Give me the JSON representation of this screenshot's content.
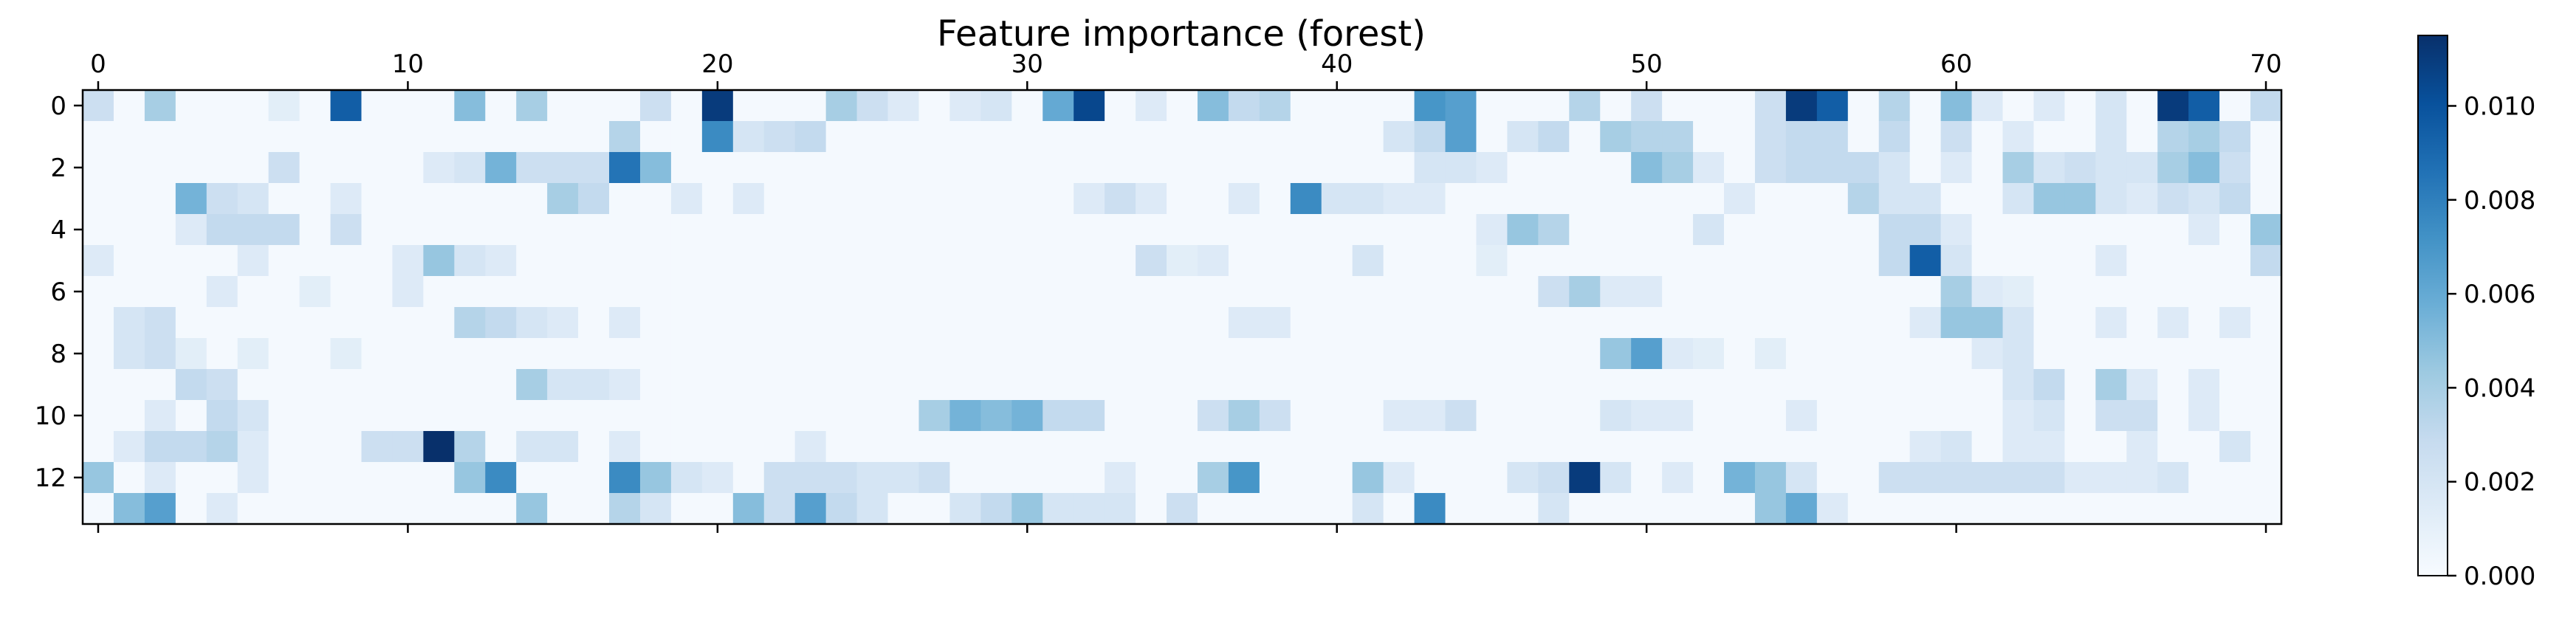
{
  "chart_data": {
    "type": "heatmap",
    "title": "Feature importance (forest)",
    "colormap": "Blues",
    "n_rows": 14,
    "n_cols": 71,
    "x_ticks": [
      0,
      10,
      20,
      30,
      40,
      50,
      60,
      70
    ],
    "x_tick_labels": [
      "0",
      "10",
      "20",
      "30",
      "40",
      "50",
      "60",
      "70"
    ],
    "y_ticks": [
      0,
      2,
      4,
      6,
      8,
      10,
      12
    ],
    "y_tick_labels": [
      "0",
      "2",
      "4",
      "6",
      "8",
      "10",
      "12"
    ],
    "colorbar": {
      "min": 0.0,
      "max": 0.0115,
      "ticks": [
        0.0,
        0.002,
        0.004,
        0.006,
        0.008,
        0.01
      ],
      "tick_labels": [
        "0.000",
        "0.002",
        "0.004",
        "0.006",
        "0.008",
        "0.010"
      ]
    },
    "base_value": 0.0002,
    "cells": [
      [
        0,
        0,
        0.0025
      ],
      [
        0,
        2,
        0.004
      ],
      [
        0,
        6,
        0.0012
      ],
      [
        0,
        8,
        0.0095
      ],
      [
        0,
        12,
        0.005
      ],
      [
        0,
        14,
        0.004
      ],
      [
        0,
        18,
        0.0025
      ],
      [
        0,
        20,
        0.011
      ],
      [
        0,
        24,
        0.004
      ],
      [
        0,
        25,
        0.0025
      ],
      [
        0,
        26,
        0.0015
      ],
      [
        0,
        28,
        0.0015
      ],
      [
        0,
        29,
        0.002
      ],
      [
        0,
        31,
        0.006
      ],
      [
        0,
        32,
        0.0105
      ],
      [
        0,
        34,
        0.0015
      ],
      [
        0,
        36,
        0.005
      ],
      [
        0,
        37,
        0.003
      ],
      [
        0,
        38,
        0.0035
      ],
      [
        0,
        43,
        0.007
      ],
      [
        0,
        44,
        0.0065
      ],
      [
        0,
        48,
        0.0035
      ],
      [
        0,
        50,
        0.0025
      ],
      [
        0,
        54,
        0.0025
      ],
      [
        0,
        55,
        0.011
      ],
      [
        0,
        56,
        0.0095
      ],
      [
        0,
        58,
        0.0035
      ],
      [
        0,
        60,
        0.005
      ],
      [
        0,
        61,
        0.0015
      ],
      [
        0,
        63,
        0.0015
      ],
      [
        0,
        65,
        0.002
      ],
      [
        0,
        67,
        0.011
      ],
      [
        0,
        68,
        0.0095
      ],
      [
        0,
        70,
        0.003
      ],
      [
        1,
        17,
        0.0035
      ],
      [
        1,
        20,
        0.0075
      ],
      [
        1,
        21,
        0.002
      ],
      [
        1,
        22,
        0.0025
      ],
      [
        1,
        23,
        0.003
      ],
      [
        1,
        42,
        0.002
      ],
      [
        1,
        43,
        0.003
      ],
      [
        1,
        44,
        0.0065
      ],
      [
        1,
        46,
        0.002
      ],
      [
        1,
        47,
        0.003
      ],
      [
        1,
        49,
        0.004
      ],
      [
        1,
        50,
        0.0035
      ],
      [
        1,
        51,
        0.0035
      ],
      [
        1,
        54,
        0.0025
      ],
      [
        1,
        55,
        0.003
      ],
      [
        1,
        56,
        0.003
      ],
      [
        1,
        58,
        0.003
      ],
      [
        1,
        60,
        0.0025
      ],
      [
        1,
        62,
        0.0015
      ],
      [
        1,
        65,
        0.002
      ],
      [
        1,
        67,
        0.0035
      ],
      [
        1,
        68,
        0.004
      ],
      [
        1,
        69,
        0.003
      ],
      [
        2,
        6,
        0.0025
      ],
      [
        2,
        11,
        0.0015
      ],
      [
        2,
        12,
        0.002
      ],
      [
        2,
        13,
        0.0055
      ],
      [
        2,
        14,
        0.0025
      ],
      [
        2,
        15,
        0.0025
      ],
      [
        2,
        16,
        0.0025
      ],
      [
        2,
        17,
        0.0085
      ],
      [
        2,
        18,
        0.005
      ],
      [
        2,
        43,
        0.002
      ],
      [
        2,
        44,
        0.002
      ],
      [
        2,
        45,
        0.0015
      ],
      [
        2,
        50,
        0.005
      ],
      [
        2,
        51,
        0.004
      ],
      [
        2,
        52,
        0.0015
      ],
      [
        2,
        54,
        0.0025
      ],
      [
        2,
        55,
        0.003
      ],
      [
        2,
        56,
        0.003
      ],
      [
        2,
        57,
        0.003
      ],
      [
        2,
        58,
        0.002
      ],
      [
        2,
        60,
        0.0015
      ],
      [
        2,
        62,
        0.004
      ],
      [
        2,
        63,
        0.002
      ],
      [
        2,
        64,
        0.0025
      ],
      [
        2,
        65,
        0.002
      ],
      [
        2,
        66,
        0.002
      ],
      [
        2,
        67,
        0.004
      ],
      [
        2,
        68,
        0.005
      ],
      [
        2,
        69,
        0.0025
      ],
      [
        3,
        3,
        0.0055
      ],
      [
        3,
        4,
        0.0025
      ],
      [
        3,
        5,
        0.002
      ],
      [
        3,
        8,
        0.0015
      ],
      [
        3,
        15,
        0.004
      ],
      [
        3,
        16,
        0.003
      ],
      [
        3,
        19,
        0.0015
      ],
      [
        3,
        21,
        0.0015
      ],
      [
        3,
        32,
        0.0015
      ],
      [
        3,
        33,
        0.0025
      ],
      [
        3,
        34,
        0.0015
      ],
      [
        3,
        37,
        0.0015
      ],
      [
        3,
        39,
        0.0075
      ],
      [
        3,
        40,
        0.002
      ],
      [
        3,
        41,
        0.002
      ],
      [
        3,
        42,
        0.0015
      ],
      [
        3,
        43,
        0.0015
      ],
      [
        3,
        53,
        0.0015
      ],
      [
        3,
        57,
        0.0035
      ],
      [
        3,
        58,
        0.002
      ],
      [
        3,
        59,
        0.002
      ],
      [
        3,
        62,
        0.002
      ],
      [
        3,
        63,
        0.0045
      ],
      [
        3,
        64,
        0.0045
      ],
      [
        3,
        65,
        0.002
      ],
      [
        3,
        66,
        0.0015
      ],
      [
        3,
        67,
        0.0025
      ],
      [
        3,
        68,
        0.002
      ],
      [
        3,
        69,
        0.003
      ],
      [
        4,
        3,
        0.0015
      ],
      [
        4,
        4,
        0.003
      ],
      [
        4,
        5,
        0.003
      ],
      [
        4,
        6,
        0.003
      ],
      [
        4,
        8,
        0.0025
      ],
      [
        4,
        45,
        0.0015
      ],
      [
        4,
        46,
        0.0045
      ],
      [
        4,
        47,
        0.0035
      ],
      [
        4,
        52,
        0.002
      ],
      [
        4,
        58,
        0.003
      ],
      [
        4,
        59,
        0.003
      ],
      [
        4,
        60,
        0.0015
      ],
      [
        4,
        68,
        0.0015
      ],
      [
        4,
        70,
        0.0045
      ],
      [
        5,
        0,
        0.0015
      ],
      [
        5,
        5,
        0.0015
      ],
      [
        5,
        10,
        0.0015
      ],
      [
        5,
        11,
        0.0045
      ],
      [
        5,
        12,
        0.002
      ],
      [
        5,
        13,
        0.0015
      ],
      [
        5,
        34,
        0.0025
      ],
      [
        5,
        35,
        0.0012
      ],
      [
        5,
        36,
        0.0015
      ],
      [
        5,
        41,
        0.002
      ],
      [
        5,
        45,
        0.0012
      ],
      [
        5,
        58,
        0.003
      ],
      [
        5,
        59,
        0.0095
      ],
      [
        5,
        60,
        0.002
      ],
      [
        5,
        65,
        0.0015
      ],
      [
        5,
        70,
        0.003
      ],
      [
        6,
        4,
        0.0015
      ],
      [
        6,
        7,
        0.0012
      ],
      [
        6,
        10,
        0.0015
      ],
      [
        6,
        47,
        0.0025
      ],
      [
        6,
        48,
        0.004
      ],
      [
        6,
        49,
        0.0015
      ],
      [
        6,
        50,
        0.0015
      ],
      [
        6,
        60,
        0.004
      ],
      [
        6,
        61,
        0.0015
      ],
      [
        6,
        62,
        0.0012
      ],
      [
        7,
        1,
        0.002
      ],
      [
        7,
        2,
        0.0025
      ],
      [
        7,
        12,
        0.0035
      ],
      [
        7,
        13,
        0.003
      ],
      [
        7,
        14,
        0.002
      ],
      [
        7,
        15,
        0.0015
      ],
      [
        7,
        17,
        0.0015
      ],
      [
        7,
        37,
        0.0015
      ],
      [
        7,
        38,
        0.0015
      ],
      [
        7,
        59,
        0.0015
      ],
      [
        7,
        60,
        0.0045
      ],
      [
        7,
        61,
        0.0045
      ],
      [
        7,
        62,
        0.002
      ],
      [
        7,
        65,
        0.0015
      ],
      [
        7,
        67,
        0.0015
      ],
      [
        7,
        69,
        0.0015
      ],
      [
        8,
        1,
        0.002
      ],
      [
        8,
        2,
        0.0025
      ],
      [
        8,
        3,
        0.0012
      ],
      [
        8,
        5,
        0.0012
      ],
      [
        8,
        8,
        0.0012
      ],
      [
        8,
        49,
        0.0045
      ],
      [
        8,
        50,
        0.0065
      ],
      [
        8,
        51,
        0.0015
      ],
      [
        8,
        52,
        0.0012
      ],
      [
        8,
        54,
        0.0012
      ],
      [
        8,
        61,
        0.0015
      ],
      [
        8,
        62,
        0.002
      ],
      [
        9,
        3,
        0.003
      ],
      [
        9,
        4,
        0.0025
      ],
      [
        9,
        14,
        0.004
      ],
      [
        9,
        15,
        0.002
      ],
      [
        9,
        16,
        0.002
      ],
      [
        9,
        17,
        0.0015
      ],
      [
        9,
        62,
        0.002
      ],
      [
        9,
        63,
        0.003
      ],
      [
        9,
        65,
        0.004
      ],
      [
        9,
        66,
        0.0015
      ],
      [
        9,
        68,
        0.0015
      ],
      [
        10,
        2,
        0.0015
      ],
      [
        10,
        4,
        0.003
      ],
      [
        10,
        5,
        0.002
      ],
      [
        10,
        27,
        0.004
      ],
      [
        10,
        28,
        0.0055
      ],
      [
        10,
        29,
        0.005
      ],
      [
        10,
        30,
        0.0055
      ],
      [
        10,
        31,
        0.003
      ],
      [
        10,
        32,
        0.003
      ],
      [
        10,
        36,
        0.0025
      ],
      [
        10,
        37,
        0.004
      ],
      [
        10,
        38,
        0.0025
      ],
      [
        10,
        42,
        0.0015
      ],
      [
        10,
        43,
        0.0015
      ],
      [
        10,
        44,
        0.0025
      ],
      [
        10,
        49,
        0.002
      ],
      [
        10,
        50,
        0.0015
      ],
      [
        10,
        51,
        0.0015
      ],
      [
        10,
        55,
        0.0015
      ],
      [
        10,
        62,
        0.0015
      ],
      [
        10,
        63,
        0.002
      ],
      [
        10,
        65,
        0.0025
      ],
      [
        10,
        66,
        0.0025
      ],
      [
        10,
        68,
        0.0015
      ],
      [
        11,
        1,
        0.0015
      ],
      [
        11,
        2,
        0.003
      ],
      [
        11,
        3,
        0.003
      ],
      [
        11,
        4,
        0.0035
      ],
      [
        11,
        5,
        0.0015
      ],
      [
        11,
        9,
        0.0025
      ],
      [
        11,
        10,
        0.0025
      ],
      [
        11,
        11,
        0.0115
      ],
      [
        11,
        12,
        0.0035
      ],
      [
        11,
        14,
        0.002
      ],
      [
        11,
        15,
        0.002
      ],
      [
        11,
        17,
        0.0015
      ],
      [
        11,
        23,
        0.0015
      ],
      [
        11,
        59,
        0.0015
      ],
      [
        11,
        60,
        0.002
      ],
      [
        11,
        62,
        0.0015
      ],
      [
        11,
        63,
        0.0015
      ],
      [
        11,
        66,
        0.0015
      ],
      [
        11,
        69,
        0.002
      ],
      [
        12,
        0,
        0.0045
      ],
      [
        12,
        2,
        0.0015
      ],
      [
        12,
        5,
        0.0015
      ],
      [
        12,
        12,
        0.0045
      ],
      [
        12,
        13,
        0.0075
      ],
      [
        12,
        17,
        0.0075
      ],
      [
        12,
        18,
        0.0045
      ],
      [
        12,
        19,
        0.002
      ],
      [
        12,
        20,
        0.0015
      ],
      [
        12,
        22,
        0.0025
      ],
      [
        12,
        23,
        0.0025
      ],
      [
        12,
        24,
        0.0025
      ],
      [
        12,
        25,
        0.002
      ],
      [
        12,
        26,
        0.002
      ],
      [
        12,
        27,
        0.0025
      ],
      [
        12,
        33,
        0.0015
      ],
      [
        12,
        36,
        0.004
      ],
      [
        12,
        37,
        0.007
      ],
      [
        12,
        41,
        0.0045
      ],
      [
        12,
        42,
        0.0015
      ],
      [
        12,
        46,
        0.002
      ],
      [
        12,
        47,
        0.0025
      ],
      [
        12,
        48,
        0.011
      ],
      [
        12,
        49,
        0.002
      ],
      [
        12,
        51,
        0.0015
      ],
      [
        12,
        53,
        0.0055
      ],
      [
        12,
        54,
        0.0045
      ],
      [
        12,
        55,
        0.002
      ],
      [
        12,
        58,
        0.0025
      ],
      [
        12,
        59,
        0.0025
      ],
      [
        12,
        60,
        0.0025
      ],
      [
        12,
        61,
        0.0025
      ],
      [
        12,
        62,
        0.0025
      ],
      [
        12,
        63,
        0.0025
      ],
      [
        12,
        64,
        0.0015
      ],
      [
        12,
        65,
        0.0015
      ],
      [
        12,
        66,
        0.0015
      ],
      [
        12,
        67,
        0.002
      ],
      [
        13,
        1,
        0.005
      ],
      [
        13,
        2,
        0.0065
      ],
      [
        13,
        4,
        0.0015
      ],
      [
        13,
        14,
        0.0045
      ],
      [
        13,
        17,
        0.0035
      ],
      [
        13,
        18,
        0.002
      ],
      [
        13,
        21,
        0.005
      ],
      [
        13,
        22,
        0.0025
      ],
      [
        13,
        23,
        0.0065
      ],
      [
        13,
        24,
        0.003
      ],
      [
        13,
        25,
        0.002
      ],
      [
        13,
        28,
        0.002
      ],
      [
        13,
        29,
        0.003
      ],
      [
        13,
        30,
        0.0045
      ],
      [
        13,
        31,
        0.002
      ],
      [
        13,
        32,
        0.002
      ],
      [
        13,
        33,
        0.002
      ],
      [
        13,
        35,
        0.0025
      ],
      [
        13,
        41,
        0.002
      ],
      [
        13,
        43,
        0.0075
      ],
      [
        13,
        47,
        0.002
      ],
      [
        13,
        54,
        0.0045
      ],
      [
        13,
        55,
        0.006
      ],
      [
        13,
        56,
        0.0015
      ]
    ]
  }
}
